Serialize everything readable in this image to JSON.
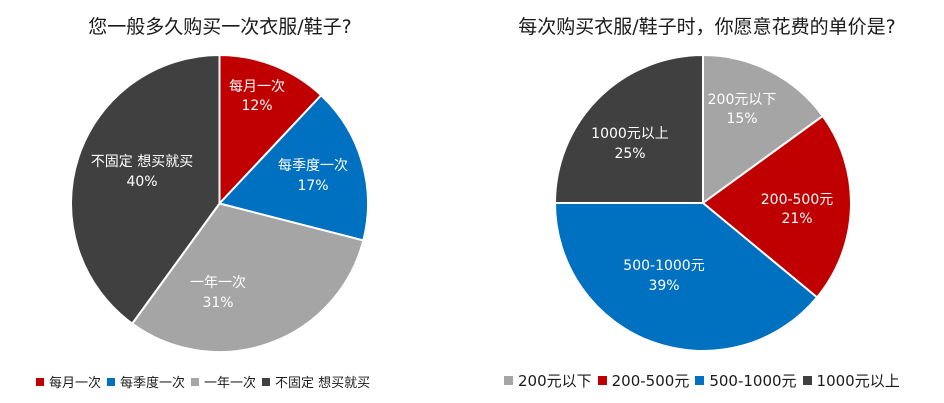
{
  "chart_data": [
    {
      "type": "pie",
      "title": "您一般多久购买一次衣服/鞋子?",
      "categories": [
        "每月一次",
        "每季度一次",
        "一年一次",
        "不固定 想买就买"
      ],
      "values": [
        12,
        17,
        31,
        40
      ],
      "unit": "%",
      "colors": [
        "#C00000",
        "#0070C0",
        "#A5A5A5",
        "#404040"
      ],
      "start_angle": "12 o'clock, clockwise",
      "data_labels": [
        "每月一次\n12%",
        "每季度一次\n17%",
        "一年一次\n31%",
        "不固定 想买就买\n40%"
      ],
      "legend_position": "bottom"
    },
    {
      "type": "pie",
      "title": "每次购买衣服/鞋子时，你愿意花费的单价是?",
      "categories": [
        "200元以下",
        "200-500元",
        "500-1000元",
        "1000元以上"
      ],
      "values": [
        15,
        21,
        39,
        25
      ],
      "unit": "%",
      "colors": [
        "#A5A5A5",
        "#C00000",
        "#0070C0",
        "#404040"
      ],
      "start_angle": "12 o'clock, clockwise",
      "data_labels": [
        "200元以下\n15%",
        "200-500元\n21%",
        "500-1000元\n39%",
        "1000元以上\n25%"
      ],
      "legend_position": "bottom"
    }
  ],
  "left": {
    "title": "您一般多久购买一次衣服/鞋子?",
    "slices": [
      {
        "label": "每月一次",
        "pct": "12%",
        "color": "#C00000"
      },
      {
        "label": "每季度一次",
        "pct": "17%",
        "color": "#0070C0"
      },
      {
        "label": "一年一次",
        "pct": "31%",
        "color": "#A5A5A5"
      },
      {
        "label": "不固定 想买就买",
        "pct": "40%",
        "color": "#404040"
      }
    ]
  },
  "right": {
    "title": "每次购买衣服/鞋子时，你愿意花费的单价是?",
    "slices": [
      {
        "label": "200元以下",
        "pct": "15%",
        "color": "#A5A5A5"
      },
      {
        "label": "200-500元",
        "pct": "21%",
        "color": "#C00000"
      },
      {
        "label": "500-1000元",
        "pct": "39%",
        "color": "#0070C0"
      },
      {
        "label": "1000元以上",
        "pct": "25%",
        "color": "#404040"
      }
    ]
  }
}
